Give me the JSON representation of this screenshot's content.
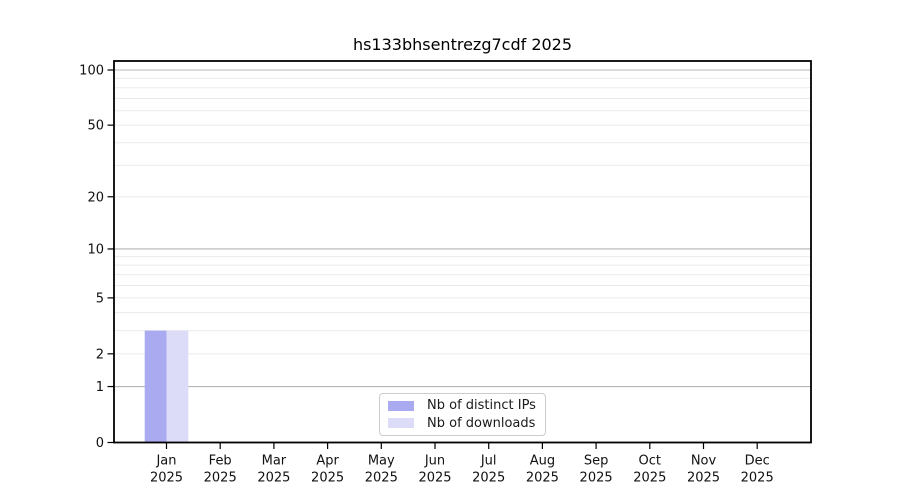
{
  "chart_data": {
    "type": "bar",
    "title": "hs133bhsentrezg7cdf 2025",
    "categories": [
      "Jan",
      "Feb",
      "Mar",
      "Apr",
      "May",
      "Jun",
      "Jul",
      "Aug",
      "Sep",
      "Oct",
      "Nov",
      "Dec"
    ],
    "category_year": "2025",
    "series": [
      {
        "name": "Nb of distinct IPs",
        "color": "#aaaaf0",
        "values": [
          3,
          0,
          0,
          0,
          0,
          0,
          0,
          0,
          0,
          0,
          0,
          0
        ]
      },
      {
        "name": "Nb of downloads",
        "color": "#dcdcf8",
        "values": [
          3,
          0,
          0,
          0,
          0,
          0,
          0,
          0,
          0,
          0,
          0,
          0
        ]
      }
    ],
    "xlabel": "",
    "ylabel": "",
    "y_axis": {
      "scale": "log10(1+value)",
      "tick_values": [
        0,
        1,
        2,
        5,
        10,
        20,
        50,
        100
      ],
      "tick_labels": [
        "0",
        "1",
        "2",
        "5",
        "10",
        "20",
        "50",
        "100"
      ],
      "major_grid_values": [
        1,
        10,
        100
      ],
      "minor_grid_values": [
        2,
        3,
        4,
        5,
        6,
        7,
        8,
        9,
        20,
        30,
        40,
        50,
        60,
        70,
        80,
        90
      ],
      "ylim": [
        0,
        112
      ]
    },
    "grid": "horizontal",
    "legend": {
      "position": "inside-bottom-center",
      "entries": [
        "Nb of distinct IPs",
        "Nb of downloads"
      ]
    },
    "colors": {
      "major_grid": "#b5b5b5",
      "minor_grid": "#ebebeb",
      "axis": "#000000",
      "text": "#111111",
      "legend_border": "#cccccc",
      "background": "#ffffff"
    }
  }
}
